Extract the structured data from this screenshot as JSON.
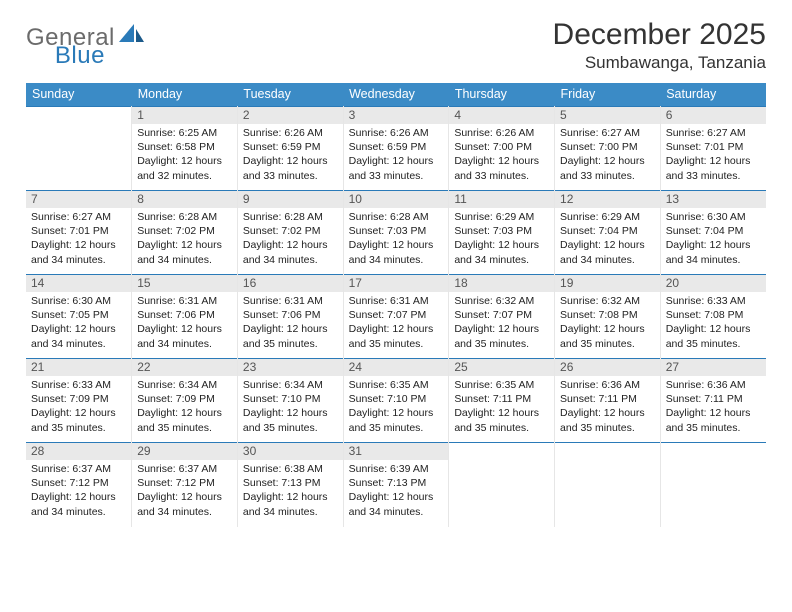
{
  "brand": {
    "part1": "General",
    "part2": "Blue",
    "accent_color": "#2a7ab8",
    "gray_color": "#6b6b6b"
  },
  "title": "December 2025",
  "location": "Sumbawanga, Tanzania",
  "colors": {
    "header_bg": "#3b8bc6",
    "header_text": "#ffffff",
    "row_border": "#2a7ab8",
    "daynum_bg": "#e9e9e9"
  },
  "days_of_week": [
    "Sunday",
    "Monday",
    "Tuesday",
    "Wednesday",
    "Thursday",
    "Friday",
    "Saturday"
  ],
  "start_offset": 1,
  "cells": [
    {
      "n": "1",
      "sr": "6:25 AM",
      "ss": "6:58 PM",
      "dh": "12",
      "dm": "32"
    },
    {
      "n": "2",
      "sr": "6:26 AM",
      "ss": "6:59 PM",
      "dh": "12",
      "dm": "33"
    },
    {
      "n": "3",
      "sr": "6:26 AM",
      "ss": "6:59 PM",
      "dh": "12",
      "dm": "33"
    },
    {
      "n": "4",
      "sr": "6:26 AM",
      "ss": "7:00 PM",
      "dh": "12",
      "dm": "33"
    },
    {
      "n": "5",
      "sr": "6:27 AM",
      "ss": "7:00 PM",
      "dh": "12",
      "dm": "33"
    },
    {
      "n": "6",
      "sr": "6:27 AM",
      "ss": "7:01 PM",
      "dh": "12",
      "dm": "33"
    },
    {
      "n": "7",
      "sr": "6:27 AM",
      "ss": "7:01 PM",
      "dh": "12",
      "dm": "34"
    },
    {
      "n": "8",
      "sr": "6:28 AM",
      "ss": "7:02 PM",
      "dh": "12",
      "dm": "34"
    },
    {
      "n": "9",
      "sr": "6:28 AM",
      "ss": "7:02 PM",
      "dh": "12",
      "dm": "34"
    },
    {
      "n": "10",
      "sr": "6:28 AM",
      "ss": "7:03 PM",
      "dh": "12",
      "dm": "34"
    },
    {
      "n": "11",
      "sr": "6:29 AM",
      "ss": "7:03 PM",
      "dh": "12",
      "dm": "34"
    },
    {
      "n": "12",
      "sr": "6:29 AM",
      "ss": "7:04 PM",
      "dh": "12",
      "dm": "34"
    },
    {
      "n": "13",
      "sr": "6:30 AM",
      "ss": "7:04 PM",
      "dh": "12",
      "dm": "34"
    },
    {
      "n": "14",
      "sr": "6:30 AM",
      "ss": "7:05 PM",
      "dh": "12",
      "dm": "34"
    },
    {
      "n": "15",
      "sr": "6:31 AM",
      "ss": "7:06 PM",
      "dh": "12",
      "dm": "34"
    },
    {
      "n": "16",
      "sr": "6:31 AM",
      "ss": "7:06 PM",
      "dh": "12",
      "dm": "35"
    },
    {
      "n": "17",
      "sr": "6:31 AM",
      "ss": "7:07 PM",
      "dh": "12",
      "dm": "35"
    },
    {
      "n": "18",
      "sr": "6:32 AM",
      "ss": "7:07 PM",
      "dh": "12",
      "dm": "35"
    },
    {
      "n": "19",
      "sr": "6:32 AM",
      "ss": "7:08 PM",
      "dh": "12",
      "dm": "35"
    },
    {
      "n": "20",
      "sr": "6:33 AM",
      "ss": "7:08 PM",
      "dh": "12",
      "dm": "35"
    },
    {
      "n": "21",
      "sr": "6:33 AM",
      "ss": "7:09 PM",
      "dh": "12",
      "dm": "35"
    },
    {
      "n": "22",
      "sr": "6:34 AM",
      "ss": "7:09 PM",
      "dh": "12",
      "dm": "35"
    },
    {
      "n": "23",
      "sr": "6:34 AM",
      "ss": "7:10 PM",
      "dh": "12",
      "dm": "35"
    },
    {
      "n": "24",
      "sr": "6:35 AM",
      "ss": "7:10 PM",
      "dh": "12",
      "dm": "35"
    },
    {
      "n": "25",
      "sr": "6:35 AM",
      "ss": "7:11 PM",
      "dh": "12",
      "dm": "35"
    },
    {
      "n": "26",
      "sr": "6:36 AM",
      "ss": "7:11 PM",
      "dh": "12",
      "dm": "35"
    },
    {
      "n": "27",
      "sr": "6:36 AM",
      "ss": "7:11 PM",
      "dh": "12",
      "dm": "35"
    },
    {
      "n": "28",
      "sr": "6:37 AM",
      "ss": "7:12 PM",
      "dh": "12",
      "dm": "34"
    },
    {
      "n": "29",
      "sr": "6:37 AM",
      "ss": "7:12 PM",
      "dh": "12",
      "dm": "34"
    },
    {
      "n": "30",
      "sr": "6:38 AM",
      "ss": "7:13 PM",
      "dh": "12",
      "dm": "34"
    },
    {
      "n": "31",
      "sr": "6:39 AM",
      "ss": "7:13 PM",
      "dh": "12",
      "dm": "34"
    }
  ],
  "labels": {
    "sunrise": "Sunrise:",
    "sunset": "Sunset:",
    "daylight_prefix": "Daylight:",
    "hours_word": "hours",
    "and_word": "and",
    "minutes_word": "minutes."
  }
}
